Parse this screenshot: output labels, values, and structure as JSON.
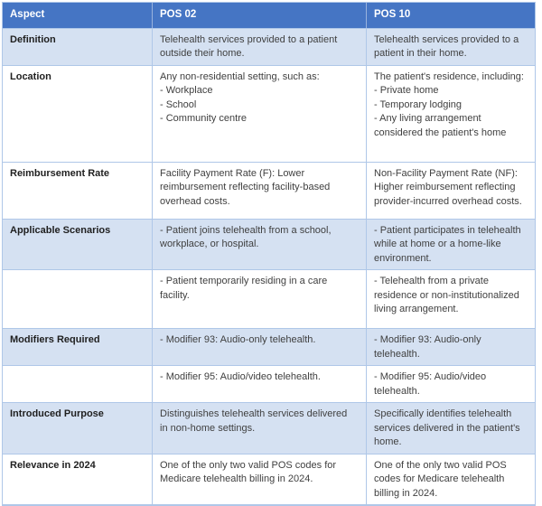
{
  "colors": {
    "header_bg": "#4575C4",
    "header_text": "#FFFFFF",
    "shaded_row_bg": "#D5E1F2",
    "row_bg": "#FFFFFF",
    "border": "#AFC7E8",
    "label_text": "#1F1F1F",
    "body_text": "#3F3F3F"
  },
  "table": {
    "headers": [
      "Aspect",
      "POS 02",
      "POS 10"
    ],
    "rows": [
      {
        "aspect": "Definition",
        "pos02": "Telehealth services provided to a patient outside their home.",
        "pos10": "Telehealth services provided to a patient in their home."
      },
      {
        "aspect": "Location",
        "pos02": "Any non-residential setting, such as:\n- Workplace\n- School\n- Community centre",
        "pos10": "The patient's residence, including:\n- Private home\n- Temporary lodging\n- Any living arrangement considered the patient's home"
      },
      {
        "aspect": "Reimbursement Rate",
        "pos02": "Facility Payment Rate (F): Lower reimbursement reflecting facility-based overhead costs.",
        "pos10": "Non-Facility Payment Rate (NF): Higher reimbursement reflecting provider-incurred overhead costs."
      },
      {
        "aspect": "Applicable Scenarios",
        "pos02": "- Patient joins telehealth from a school, workplace, or hospital.",
        "pos10": "- Patient participates in telehealth while at home or a home-like environment."
      },
      {
        "aspect": "",
        "pos02": "- Patient temporarily residing in a care facility.",
        "pos10": "- Telehealth from a private residence or non-institutionalized living arrangement."
      },
      {
        "aspect": "Modifiers Required",
        "pos02": "- Modifier 93: Audio-only telehealth.",
        "pos10": "- Modifier 93: Audio-only telehealth."
      },
      {
        "aspect": "",
        "pos02": "- Modifier 95: Audio/video telehealth.",
        "pos10": "- Modifier 95: Audio/video telehealth."
      },
      {
        "aspect": "Introduced Purpose",
        "pos02": "Distinguishes telehealth services delivered in non-home settings.",
        "pos10": "Specifically identifies telehealth services delivered in the patient's home."
      },
      {
        "aspect": "Relevance in 2024",
        "pos02": "One of the only two valid POS codes for Medicare telehealth billing in 2024.",
        "pos10": "One of the only two valid POS codes for Medicare telehealth billing in 2024."
      }
    ]
  }
}
